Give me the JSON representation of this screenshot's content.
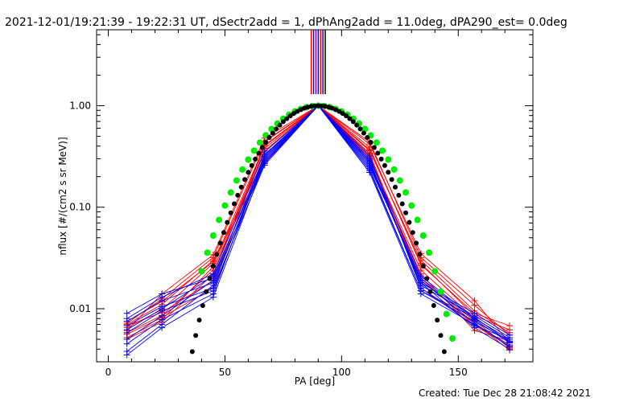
{
  "title": "2021-12-01/19:21:39 - 19:22:31 UT, dSectr2add = 1, dPhAng2add = 11.0deg, dPA290_est=  0.0deg",
  "footer": "Created: Tue Dec 28 21:08:42 2021",
  "colors": {
    "red": "#ff0000",
    "blue": "#0000ff",
    "green": "#00ee00",
    "black": "#000000",
    "purple": "#7a00b0"
  },
  "chart_data": {
    "type": "line",
    "xlabel": "PA [deg]",
    "ylabel": "nflux [#/(cm2 s sr MeV)]",
    "xlim": [
      -5,
      182
    ],
    "ylim": [
      0.003,
      5.6
    ],
    "yscale": "log",
    "x_ticks": [
      0,
      50,
      100,
      150
    ],
    "x_tick_labels": [
      "0",
      "50",
      "100",
      "150"
    ],
    "y_ticks": [
      0.01,
      0.1,
      1.0
    ],
    "y_tick_labels": [
      "0.01",
      "0.10",
      "1.00"
    ],
    "pa_bins": [
      8,
      23,
      45,
      67,
      90,
      112,
      134,
      157,
      172
    ],
    "red_series": [
      [
        0.0072,
        0.0125,
        0.032,
        0.45,
        1.0,
        0.36,
        0.03,
        0.0095,
        0.0058
      ],
      [
        0.0065,
        0.0098,
        0.028,
        0.4,
        1.0,
        0.31,
        0.024,
        0.008,
        0.005
      ],
      [
        0.0058,
        0.0086,
        0.024,
        0.36,
        1.0,
        0.42,
        0.035,
        0.012,
        0.0046
      ],
      [
        0.007,
        0.011,
        0.03,
        0.3,
        1.0,
        0.28,
        0.02,
        0.0068,
        0.0043
      ],
      [
        0.0052,
        0.0078,
        0.026,
        0.38,
        1.0,
        0.39,
        0.027,
        0.009,
        0.0068
      ],
      [
        0.0061,
        0.014,
        0.034,
        0.48,
        1.0,
        0.33,
        0.016,
        0.0072,
        0.0039
      ],
      [
        0.0068,
        0.0092,
        0.019,
        0.33,
        1.0,
        0.44,
        0.032,
        0.0108,
        0.0055
      ],
      [
        0.005,
        0.0074,
        0.022,
        0.41,
        1.0,
        0.3,
        0.022,
        0.0061,
        0.0048
      ],
      [
        0.0075,
        0.0118,
        0.029,
        0.27,
        1.0,
        0.37,
        0.028,
        0.0085,
        0.0062
      ],
      [
        0.0056,
        0.0082,
        0.016,
        0.44,
        1.0,
        0.34,
        0.019,
        0.0076,
        0.0041
      ]
    ],
    "blue_series": [
      [
        0.009,
        0.014,
        0.02,
        0.32,
        1.0,
        0.27,
        0.018,
        0.009,
        0.0055
      ],
      [
        0.0075,
        0.012,
        0.018,
        0.28,
        1.0,
        0.24,
        0.015,
        0.0075,
        0.0048
      ],
      [
        0.0068,
        0.0105,
        0.016,
        0.26,
        1.0,
        0.3,
        0.021,
        0.008,
        0.005
      ],
      [
        0.008,
        0.013,
        0.022,
        0.35,
        1.0,
        0.22,
        0.014,
        0.007,
        0.0044
      ],
      [
        0.0058,
        0.0095,
        0.015,
        0.3,
        1.0,
        0.29,
        0.017,
        0.0085,
        0.0052
      ],
      [
        0.005,
        0.0085,
        0.019,
        0.27,
        1.0,
        0.25,
        0.02,
        0.0078,
        0.0046
      ],
      [
        0.0045,
        0.0078,
        0.014,
        0.33,
        1.0,
        0.32,
        0.016,
        0.0068,
        0.005
      ],
      [
        0.0062,
        0.01,
        0.021,
        0.29,
        1.0,
        0.26,
        0.019,
        0.0072,
        0.0042
      ],
      [
        0.0038,
        0.007,
        0.017,
        0.31,
        1.0,
        0.23,
        0.015,
        0.0082,
        0.0047
      ],
      [
        0.0035,
        0.0065,
        0.013,
        0.28,
        1.0,
        0.28,
        0.018,
        0.0065,
        0.004
      ]
    ],
    "green_model": {
      "form": "sin^n(PA)",
      "n": 8.5,
      "amplitude": 1.0,
      "pa_range": [
        40,
        155
      ],
      "dot_step_deg": 2.5
    },
    "black_model": {
      "form": "sin^n(PA)",
      "n": 10.5,
      "amplitude": 1.0,
      "pa_range": [
        30,
        155
      ],
      "dot_step_deg": 1.5
    },
    "vertical_line_bundle": {
      "pa_values": [
        87,
        88,
        89,
        90,
        91,
        92,
        93
      ],
      "top": 5.6,
      "bottom": 1.3
    }
  }
}
